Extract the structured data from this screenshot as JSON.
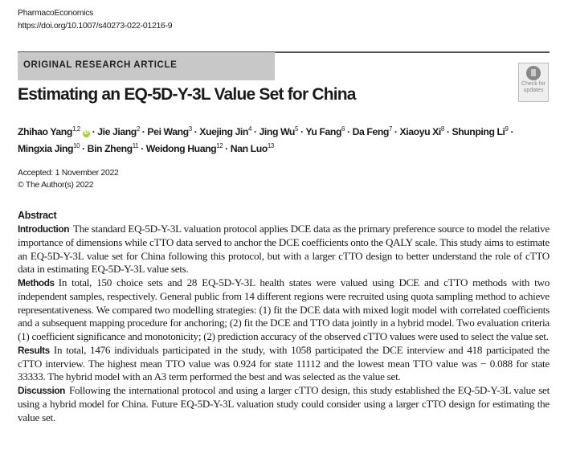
{
  "header": {
    "journal": "PharmacoEconomics",
    "doi": "https://doi.org/10.1007/s40273-022-01216-9",
    "article_type": "ORIGINAL RESEARCH ARTICLE",
    "badge": {
      "line1": "Check for",
      "line2": "updates",
      "icon": "check-for-updates-icon"
    }
  },
  "title": "Estimating an EQ-5D-Y-3L Value Set for China",
  "authors": [
    {
      "name": "Zhihao Yang",
      "aff": "1,2",
      "orcid": true
    },
    {
      "name": "Jie Jiang",
      "aff": "2"
    },
    {
      "name": "Pei Wang",
      "aff": "3"
    },
    {
      "name": "Xuejing Jin",
      "aff": "4"
    },
    {
      "name": "Jing Wu",
      "aff": "5"
    },
    {
      "name": "Yu Fang",
      "aff": "6"
    },
    {
      "name": "Da Feng",
      "aff": "7"
    },
    {
      "name": "Xiaoyu Xi",
      "aff": "8"
    },
    {
      "name": "Shunping Li",
      "aff": "9"
    },
    {
      "name": "Mingxia Jing",
      "aff": "10"
    },
    {
      "name": "Bin Zheng",
      "aff": "11"
    },
    {
      "name": "Weidong Huang",
      "aff": "12"
    },
    {
      "name": "Nan Luo",
      "aff": "13"
    }
  ],
  "accepted": "Accepted: 1 November 2022",
  "copyright": "© The Author(s) 2022",
  "abstract": {
    "heading": "Abstract",
    "sections": [
      {
        "label": "Introduction",
        "text": "The standard EQ-5D-Y-3L valuation protocol applies DCE data as the primary preference source to model the relative importance of dimensions while cTTO data served to anchor the DCE coefficients onto the QALY scale. This study aims to estimate an EQ-5D-Y-3L value set for China following this protocol, but with a larger cTTO design to better understand the role of cTTO data in estimating EQ-5D-Y-3L value sets."
      },
      {
        "label": "Methods",
        "text": "In total, 150 choice sets and 28 EQ-5D-Y-3L health states were valued using DCE and cTTO methods with two independent samples, respectively. General public from 14 different regions were recruited using quota sampling method to achieve representativeness. We compared two modelling strategies: (1) fit the DCE data with mixed logit model with correlated coefficients and a subsequent mapping procedure for anchoring; (2) fit the DCE and TTO data jointly in a hybrid model. Two evaluation criteria (1) coefficient significance and monotonicity; (2) prediction accuracy of the observed cTTO values were used to select the value set."
      },
      {
        "label": "Results",
        "text": "In total, 1476 individuals participated in the study, with 1058 participated the DCE interview and 418 participated the cTTO interview. The highest mean TTO value was 0.924 for state 11112 and the lowest mean TTO value was − 0.088 for state 33333. The hybrid model with an A3 term performed the best and was selected as the value set."
      },
      {
        "label": "Discussion",
        "text": "Following the international protocol and using a larger cTTO design, this study established the EQ-5D-Y-3L value set using a hybrid model for China. Future EQ-5D-Y-3L valuation study could consider using a larger cTTO design for estimating the value set."
      }
    ]
  }
}
